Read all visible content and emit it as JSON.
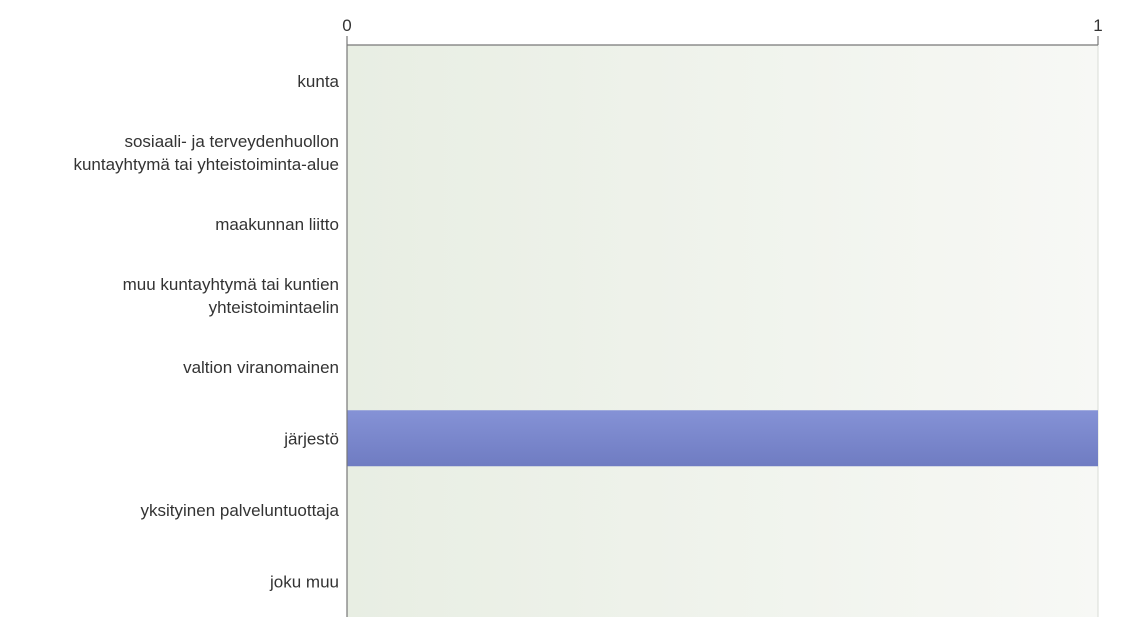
{
  "chart_data": {
    "type": "bar",
    "orientation": "horizontal",
    "categories": [
      [
        "kunta"
      ],
      [
        "sosiaali- ja terveydenhuollon",
        "kuntayhtymä tai yhteistoiminta-alue"
      ],
      [
        "maakunnan liitto"
      ],
      [
        "muu kuntayhtymä tai kuntien",
        "yhteistoimintaelin"
      ],
      [
        "valtion viranomainen"
      ],
      [
        "järjestö"
      ],
      [
        "yksityinen palveluntuottaja"
      ],
      [
        "joku muu"
      ]
    ],
    "values": [
      0,
      0,
      0,
      0,
      0,
      1,
      0,
      0
    ],
    "xlim": [
      0,
      1
    ],
    "x_ticks": [
      {
        "value": 0,
        "label": "0"
      },
      {
        "value": 1,
        "label": "1"
      }
    ],
    "axis_position": "top",
    "grid": true,
    "colors": {
      "bar_top": "#8592d6",
      "bar_bottom": "#6f7cc2",
      "plot_bg_left": "#e8eee3",
      "plot_bg_right": "#f7f8f5",
      "axis": "#777777",
      "grid": "#d8ddd6"
    }
  }
}
